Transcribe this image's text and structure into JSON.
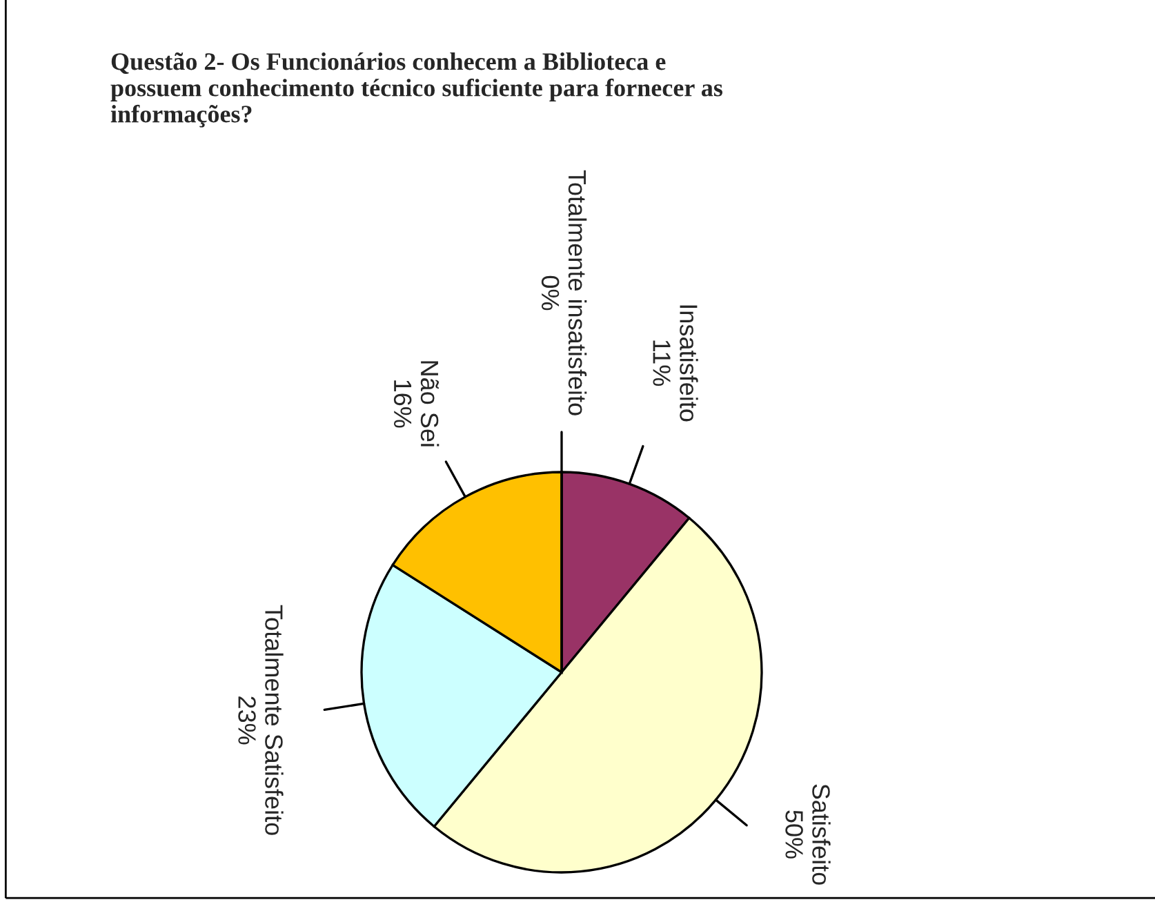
{
  "chart_data": {
    "type": "pie",
    "title": "Questão 2- Os Funcionários conhecem a Biblioteca e\npossuem conhecimento técnico suficiente para fornecer as\ninformações?",
    "categories": [
      "Insatisfeito",
      "Satisfeito",
      "Totalmente Satisfeito",
      "Não Sei",
      "Totalmente insatisfeito"
    ],
    "values": [
      11,
      50,
      23,
      16,
      0
    ],
    "colors": [
      "#993366",
      "#ffffcc",
      "#ccffff",
      "#ffc000",
      "#333399"
    ],
    "value_labels": [
      "11%",
      "50%",
      "23%",
      "16%",
      "0%"
    ]
  }
}
